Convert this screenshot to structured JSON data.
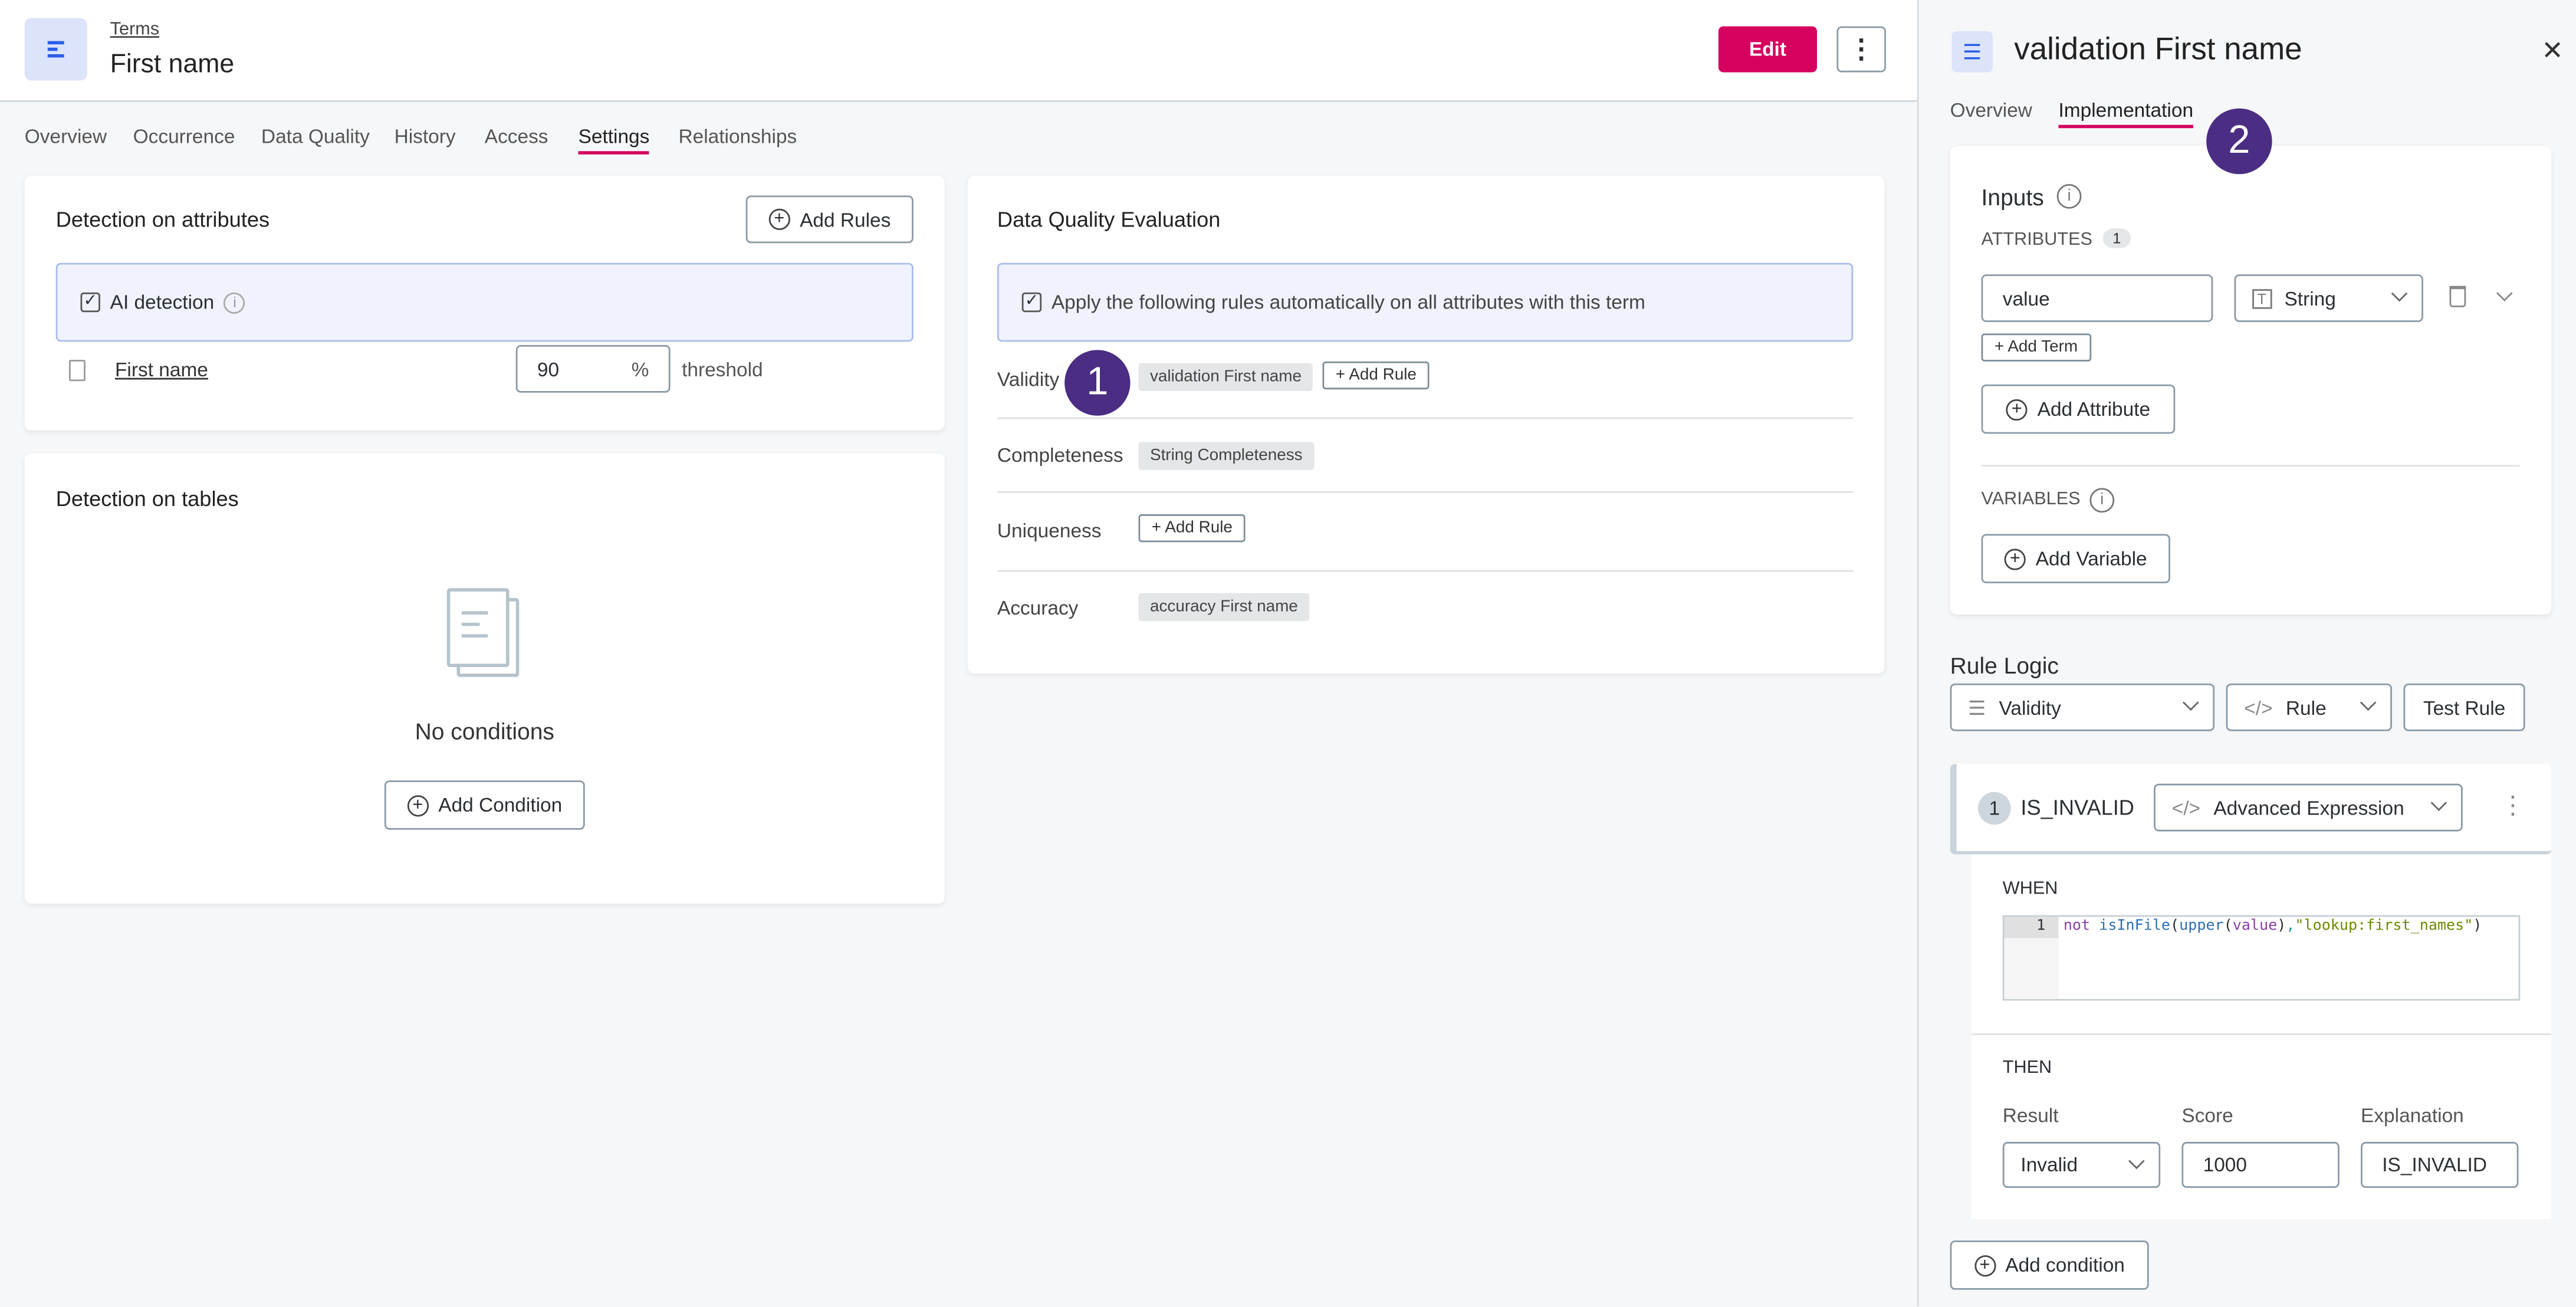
{
  "header": {
    "breadcrumb": "Terms",
    "title": "First name",
    "edit_label": "Edit",
    "icon": "term-icon"
  },
  "tabs": [
    {
      "label": "Overview"
    },
    {
      "label": "Occurrence"
    },
    {
      "label": "Data Quality"
    },
    {
      "label": "History"
    },
    {
      "label": "Access"
    },
    {
      "label": "Settings",
      "active": true
    },
    {
      "label": "Relationships"
    }
  ],
  "colors": {
    "accent": "#d6005f",
    "badge": "#4b2d83"
  },
  "detection_attributes": {
    "title": "Detection on attributes",
    "add_rules": "Add Rules",
    "ai_detection": "AI detection",
    "ai_checked": true,
    "attribute": "First name",
    "threshold_value": "90",
    "threshold_unit": "%",
    "threshold_label": "threshold"
  },
  "detection_tables": {
    "title": "Detection on tables",
    "empty": "No conditions",
    "add_condition": "Add Condition"
  },
  "dq": {
    "title": "Data Quality Evaluation",
    "apply_text": "Apply the following rules automatically on all attributes with this term",
    "apply_checked": true,
    "rows": [
      {
        "label": "Validity",
        "chip": "validation First name",
        "add": "Add Rule"
      },
      {
        "label": "Completeness",
        "chip": "String Completeness"
      },
      {
        "label": "Uniqueness",
        "add": "Add Rule"
      },
      {
        "label": "Accuracy",
        "chip": "accuracy First name"
      }
    ]
  },
  "annotations": [
    "1",
    "2"
  ],
  "panel": {
    "title": "validation First name",
    "tabs": [
      "Overview",
      "Implementation"
    ],
    "active_tab": "Implementation",
    "inputs": {
      "title": "Inputs",
      "attributes_label": "ATTRIBUTES",
      "attributes_count": "1",
      "attr_value": "value",
      "attr_type": "String",
      "add_term": "Add Term",
      "add_attribute": "Add Attribute",
      "variables_label": "VARIABLES",
      "add_variable": "Add Variable"
    },
    "rule_logic": {
      "title": "Rule Logic",
      "dimension": "Validity",
      "type": "Rule",
      "test": "Test Rule"
    },
    "condition": {
      "number": "1",
      "name": "IS_INVALID",
      "mode": "Advanced Expression",
      "when": "WHEN",
      "line": "1",
      "code": {
        "kw": "not",
        "fn": "isInFile",
        "p1": "(",
        "fn2": "upper",
        "p2": "(",
        "arg": "value",
        "p3": ")",
        "comma": ",",
        "str": "\"lookup:first_names\"",
        "p4": ")"
      },
      "then": "THEN",
      "result_label": "Result",
      "result": "Invalid",
      "score_label": "Score",
      "score": "1000",
      "expl_label": "Explanation",
      "expl": "IS_INVALID"
    },
    "add_condition": "Add condition"
  }
}
